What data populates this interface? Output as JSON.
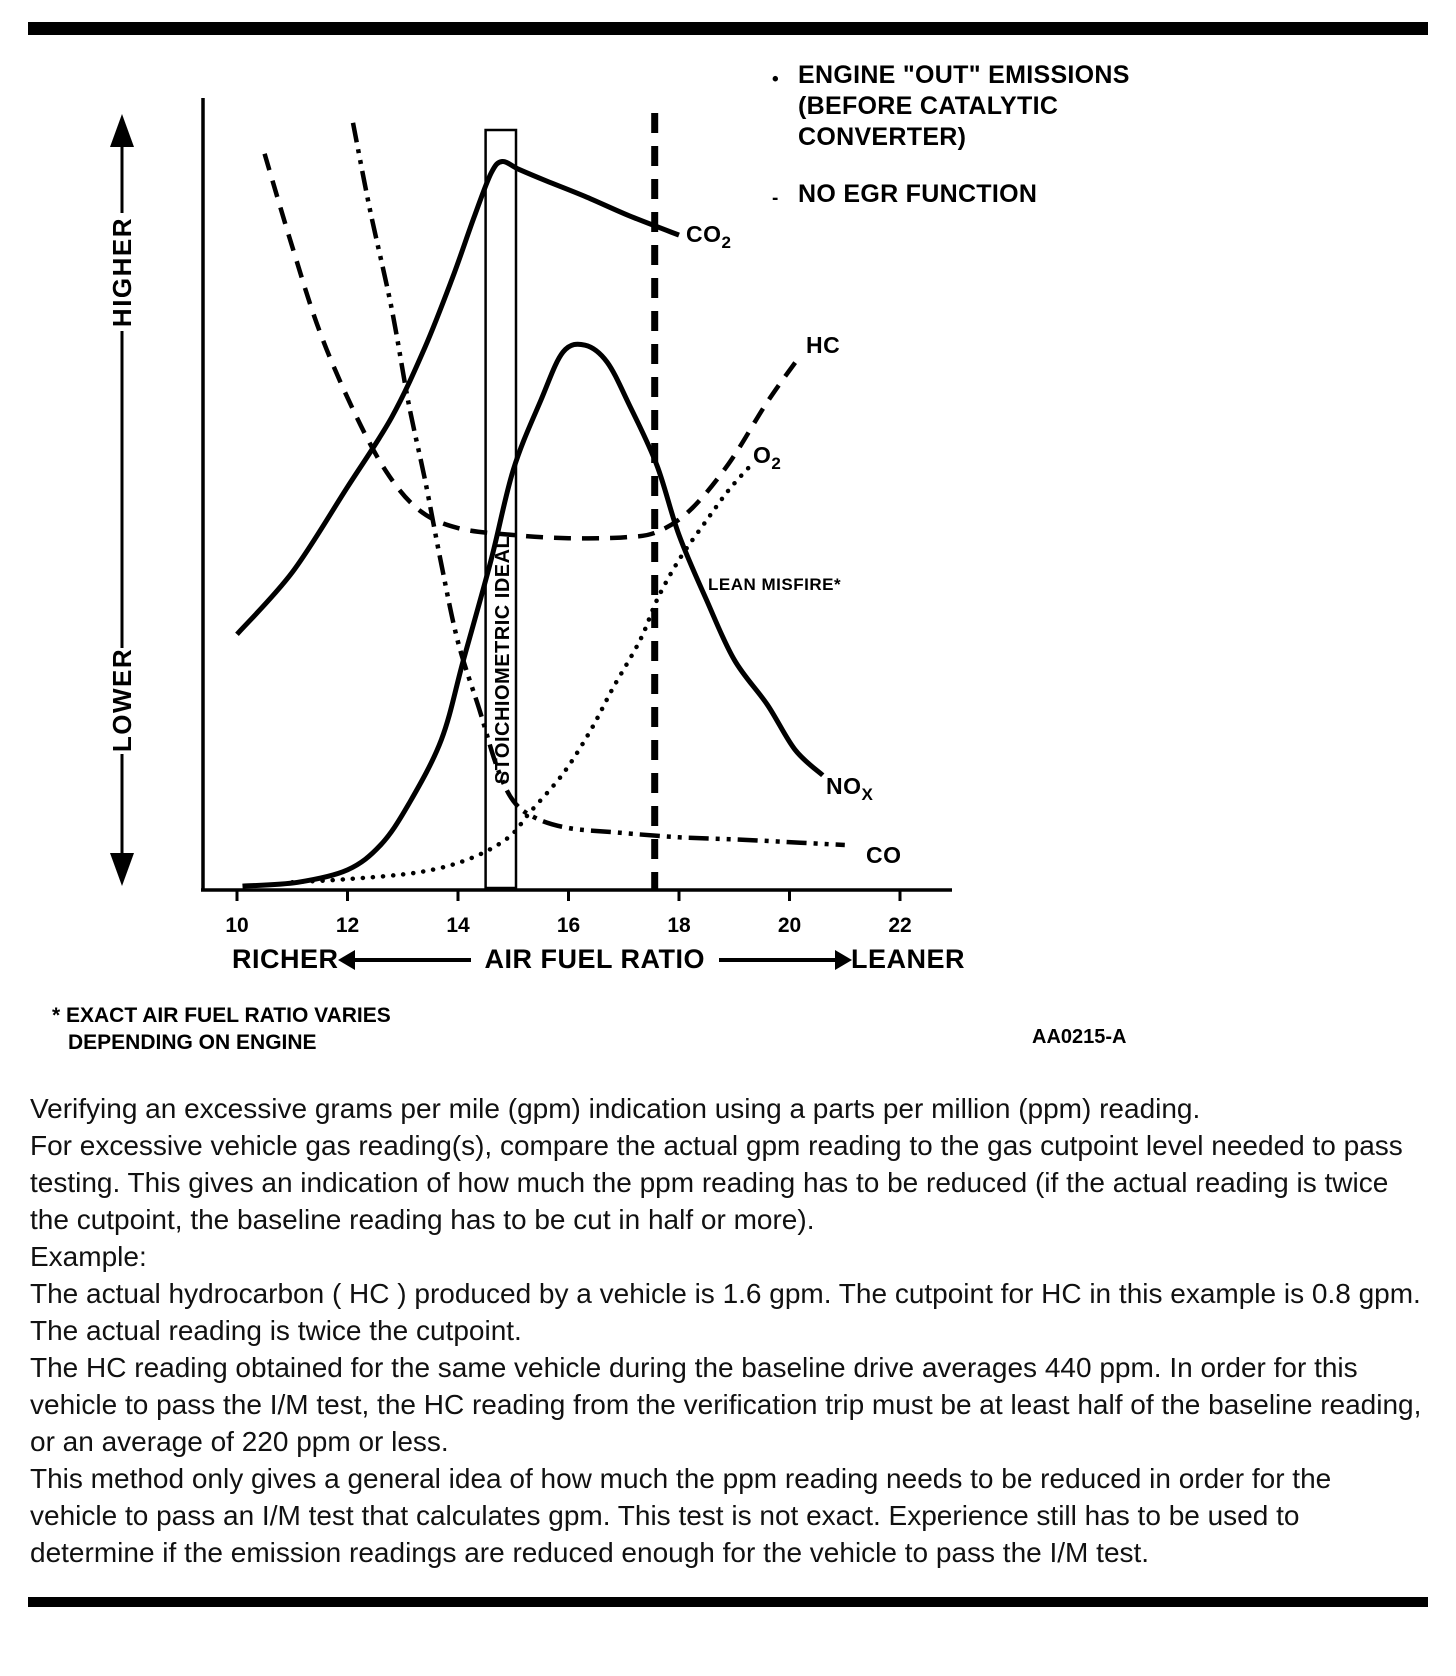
{
  "chart_data": {
    "type": "line",
    "title": "",
    "x_axis": {
      "label": "AIR FUEL RATIO",
      "left": "RICHER",
      "right": "LEANER",
      "ticks": [
        10,
        12,
        14,
        16,
        18,
        20,
        22
      ],
      "range": [
        9.4,
        23
      ]
    },
    "y_axis": {
      "high": "HIGHER",
      "low": "LOWER"
    },
    "ylim": [
      0,
      100
    ],
    "stoich_band": {
      "from": 14.5,
      "to": 15.05,
      "label": "STOICHIOMETRIC IDEAL"
    },
    "lean_misfire_x": 17.56,
    "series": [
      {
        "name": "CO2",
        "style": "solid",
        "points": [
          [
            10.0,
            33
          ],
          [
            11,
            41
          ],
          [
            12,
            52
          ],
          [
            12.8,
            61
          ],
          [
            13.4,
            70
          ],
          [
            13.9,
            79
          ],
          [
            14.3,
            87
          ],
          [
            14.6,
            92.5
          ],
          [
            14.8,
            94
          ],
          [
            15.1,
            93
          ],
          [
            15.6,
            91.5
          ],
          [
            16.3,
            89.5
          ],
          [
            17.1,
            87
          ],
          [
            18.0,
            84.5
          ]
        ]
      },
      {
        "name": "HC",
        "style": "dashed",
        "points": [
          [
            10.5,
            95
          ],
          [
            11,
            83
          ],
          [
            11.5,
            72
          ],
          [
            12.1,
            62
          ],
          [
            12.7,
            54
          ],
          [
            13.3,
            49
          ],
          [
            14,
            46.7
          ],
          [
            15,
            45.8
          ],
          [
            16,
            45.4
          ],
          [
            17,
            45.5
          ],
          [
            17.6,
            46.2
          ],
          [
            18.2,
            49
          ],
          [
            18.9,
            55
          ],
          [
            19.6,
            63
          ],
          [
            20.2,
            69
          ]
        ]
      },
      {
        "name": "O2",
        "style": "dotted",
        "points": [
          [
            11,
            1
          ],
          [
            12,
            1.4
          ],
          [
            13.3,
            2.3
          ],
          [
            14.2,
            4
          ],
          [
            14.9,
            6.7
          ],
          [
            15.3,
            10
          ],
          [
            15.9,
            15
          ],
          [
            16.4,
            20.6
          ],
          [
            16.8,
            26
          ],
          [
            17.3,
            32.3
          ],
          [
            17.6,
            37.4
          ],
          [
            18,
            42.6
          ],
          [
            18.5,
            47.7
          ],
          [
            18.9,
            51.6
          ],
          [
            19.3,
            54.8
          ]
        ]
      },
      {
        "name": "NOx",
        "style": "solid",
        "points": [
          [
            10.1,
            0.5
          ],
          [
            11.1,
            1
          ],
          [
            12,
            2.6
          ],
          [
            12.6,
            5.8
          ],
          [
            13.1,
            11
          ],
          [
            13.7,
            19.4
          ],
          [
            14.1,
            29.7
          ],
          [
            14.6,
            42.6
          ],
          [
            15,
            54.2
          ],
          [
            15.5,
            63.2
          ],
          [
            15.9,
            69.4
          ],
          [
            16.3,
            70.3
          ],
          [
            16.7,
            68.1
          ],
          [
            17.1,
            62.6
          ],
          [
            17.6,
            54.8
          ],
          [
            18,
            45.8
          ],
          [
            18.5,
            37.4
          ],
          [
            19,
            29.7
          ],
          [
            19.6,
            23.9
          ],
          [
            20.1,
            18.1
          ],
          [
            20.6,
            14.8
          ]
        ]
      },
      {
        "name": "CO",
        "style": "dash-dot-dot",
        "points": [
          [
            12.1,
            99
          ],
          [
            12.4,
            88
          ],
          [
            12.8,
            75
          ],
          [
            13.1,
            63
          ],
          [
            13.4,
            53
          ],
          [
            13.7,
            42
          ],
          [
            14,
            32
          ],
          [
            14.4,
            23
          ],
          [
            14.7,
            16
          ],
          [
            15,
            11.5
          ],
          [
            15.4,
            9.3
          ],
          [
            16,
            8
          ],
          [
            16.9,
            7.4
          ],
          [
            18,
            6.8
          ],
          [
            19.1,
            6.5
          ],
          [
            20.2,
            6.1
          ],
          [
            21,
            5.8
          ]
        ]
      }
    ],
    "labels": {
      "co2": {
        "main": "CO",
        "sub": "2"
      },
      "hc": {
        "main": "HC"
      },
      "o2": {
        "main": "O",
        "sub": "2"
      },
      "nox": {
        "main": "NO",
        "sub": "X"
      },
      "co": {
        "main": "CO"
      },
      "lean_misfire": "LEAN MISFIRE*"
    },
    "legend": [
      {
        "marker": "•",
        "text": "ENGINE \"OUT\" EMISSIONS\n(BEFORE CATALYTIC\nCONVERTER)"
      },
      {
        "marker": "-",
        "text": "NO EGR FUNCTION"
      }
    ]
  },
  "figure": {
    "footnote_line1": "* EXACT AIR FUEL RATIO VARIES",
    "footnote_line2": "DEPENDING ON ENGINE",
    "code": "AA0215-A"
  },
  "document": {
    "paragraphs": [
      "Verifying an excessive grams per mile (gpm) indication using a parts per million (ppm) reading.",
      "For excessive vehicle gas reading(s), compare the actual gpm reading to the gas cutpoint level needed to pass testing. This gives an indication of how much the ppm reading has to be reduced (if the actual reading is twice the cutpoint, the baseline reading has to be cut in half or more).",
      "Example:",
      "The actual hydrocarbon ( HC ) produced by a vehicle is 1.6 gpm. The cutpoint for HC in this example is 0.8 gpm. The actual reading is twice the cutpoint.",
      "The HC reading obtained for the same vehicle during the baseline drive averages 440 ppm. In order for this vehicle to pass the I/M test, the HC reading from the verification trip must be at least half of the baseline reading, or an average of 220 ppm or less.",
      "This method only gives a general idea of how much the ppm reading needs to be reduced in order for the vehicle to pass an I/M test that calculates gpm. This test is not exact. Experience still has to be used to determine if the emission readings are reduced enough for the vehicle to pass the I/M test."
    ]
  }
}
